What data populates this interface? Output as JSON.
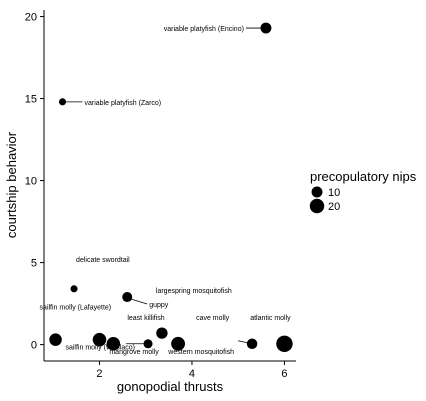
{
  "chart_data": {
    "type": "scatter",
    "title": "",
    "xlabel": "gonopodial thrusts",
    "ylabel": "courtship behavior",
    "xlim": [
      0.8,
      6.25
    ],
    "ylim": [
      -1,
      20.4
    ],
    "x_ticks": [
      2,
      4,
      6
    ],
    "y_ticks": [
      0,
      5,
      10,
      15,
      20
    ],
    "grid": false,
    "size_variable": "precopulatory nips",
    "points": [
      {
        "label": "variable platyfish (Encino)",
        "x": 5.6,
        "y": 19.3,
        "size": 10
      },
      {
        "label": "variable platyfish (Zarco)",
        "x": 1.2,
        "y": 14.8,
        "size": 3
      },
      {
        "label": "delicate swordtail",
        "x": 1.45,
        "y": 3.4,
        "size": 3
      },
      {
        "label": "guppy",
        "x": 2.6,
        "y": 2.9,
        "size": 8
      },
      {
        "label": "largespring mosquitofish",
        "x": 3.35,
        "y": 0.7,
        "size": 11
      },
      {
        "label": "least killifish",
        "x": 3.05,
        "y": 0.05,
        "size": 6
      },
      {
        "label": "cave molly",
        "x": 3.7,
        "y": 0.05,
        "size": 18
      },
      {
        "label": "atlantic molly",
        "x": 6.0,
        "y": 0.05,
        "size": 27
      },
      {
        "label": "sailfin molly (Lafayette)",
        "x": 1.05,
        "y": 0.3,
        "size": 14
      },
      {
        "label": "sailfin molly (Weslaco)",
        "x": 2.0,
        "y": 0.3,
        "size": 17
      },
      {
        "label": "mangrove molly",
        "x": 2.3,
        "y": 0.05,
        "size": 17
      },
      {
        "label": "western mosquitofish",
        "x": 5.3,
        "y": 0.05,
        "size": 9
      }
    ],
    "legend": {
      "title": "precopulatory nips",
      "entries": [
        {
          "label": "10",
          "size": 10
        },
        {
          "label": "20",
          "size": 20
        }
      ]
    }
  }
}
